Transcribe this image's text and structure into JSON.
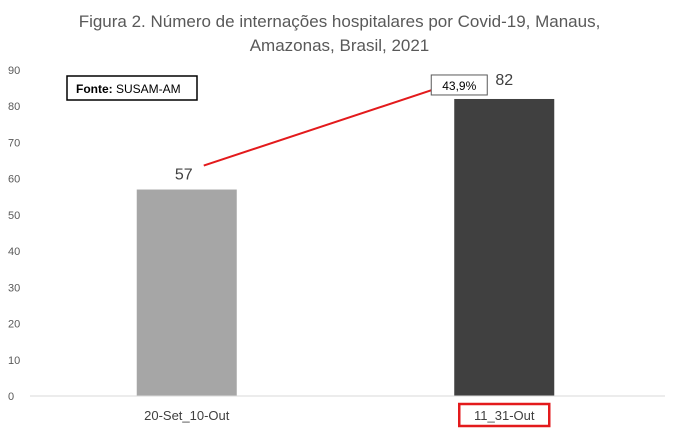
{
  "chart_data": {
    "type": "bar",
    "title_lines": [
      "Figura 2. Número de internações hospitalares por Covid-19, Manaus,",
      "Amazonas, Brasil, 2021"
    ],
    "categories": [
      "20-Set_10-Out",
      "11_31-Out"
    ],
    "values": [
      57,
      82
    ],
    "data_labels": [
      "57",
      "82"
    ],
    "bar_colors": [
      "#a6a6a6",
      "#404040"
    ],
    "ylim": [
      0,
      90
    ],
    "yticks": [
      0,
      10,
      20,
      30,
      40,
      50,
      60,
      70,
      80,
      90
    ],
    "grid": false,
    "legend": null,
    "source": {
      "prefix": "Fonte:",
      "text": "SUSAM-AM"
    },
    "annotation": {
      "text": "43,9%",
      "from": "20-Set_10-Out",
      "to": "11_31-Out",
      "color": "#e31a1c"
    },
    "highlighted_category": {
      "name": "11_31-Out",
      "box_color": "#e31a1c"
    }
  }
}
